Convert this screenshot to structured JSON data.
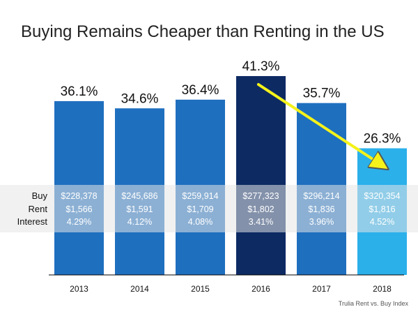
{
  "chart_data": {
    "type": "bar",
    "title": "Buying Remains Cheaper than Renting in the US",
    "categories": [
      "2013",
      "2014",
      "2015",
      "2016",
      "2017",
      "2018"
    ],
    "values": [
      36.1,
      34.6,
      36.4,
      41.3,
      35.7,
      26.3
    ],
    "value_labels": [
      "36.1%",
      "34.6%",
      "36.4%",
      "41.3%",
      "35.7%",
      "26.3%"
    ],
    "xlabel": "",
    "ylabel": "",
    "grid": false,
    "legend": "none",
    "bar_colors": [
      "#1f6fbf",
      "#1f6fbf",
      "#1f6fbf",
      "#0d2a63",
      "#1f6fbf",
      "#2bb0ea"
    ],
    "table_band_color": "#e6e6e6",
    "arrow_color": "#f4f21a",
    "row_labels": [
      "Buy",
      "Rent",
      "Interest"
    ],
    "rows": {
      "buy": [
        "$228,378",
        "$245,686",
        "$259,914",
        "$277,323",
        "$296,214",
        "$320,354"
      ],
      "rent": [
        "$1,566",
        "$1,591",
        "$1,709",
        "$1,802",
        "$1,836",
        "$1,816"
      ],
      "interest": [
        "4.29%",
        "4.12%",
        "4.08%",
        "3.41%",
        "3.96%",
        "4.52%"
      ]
    },
    "source": "Trulia Rent vs. Buy Index"
  }
}
